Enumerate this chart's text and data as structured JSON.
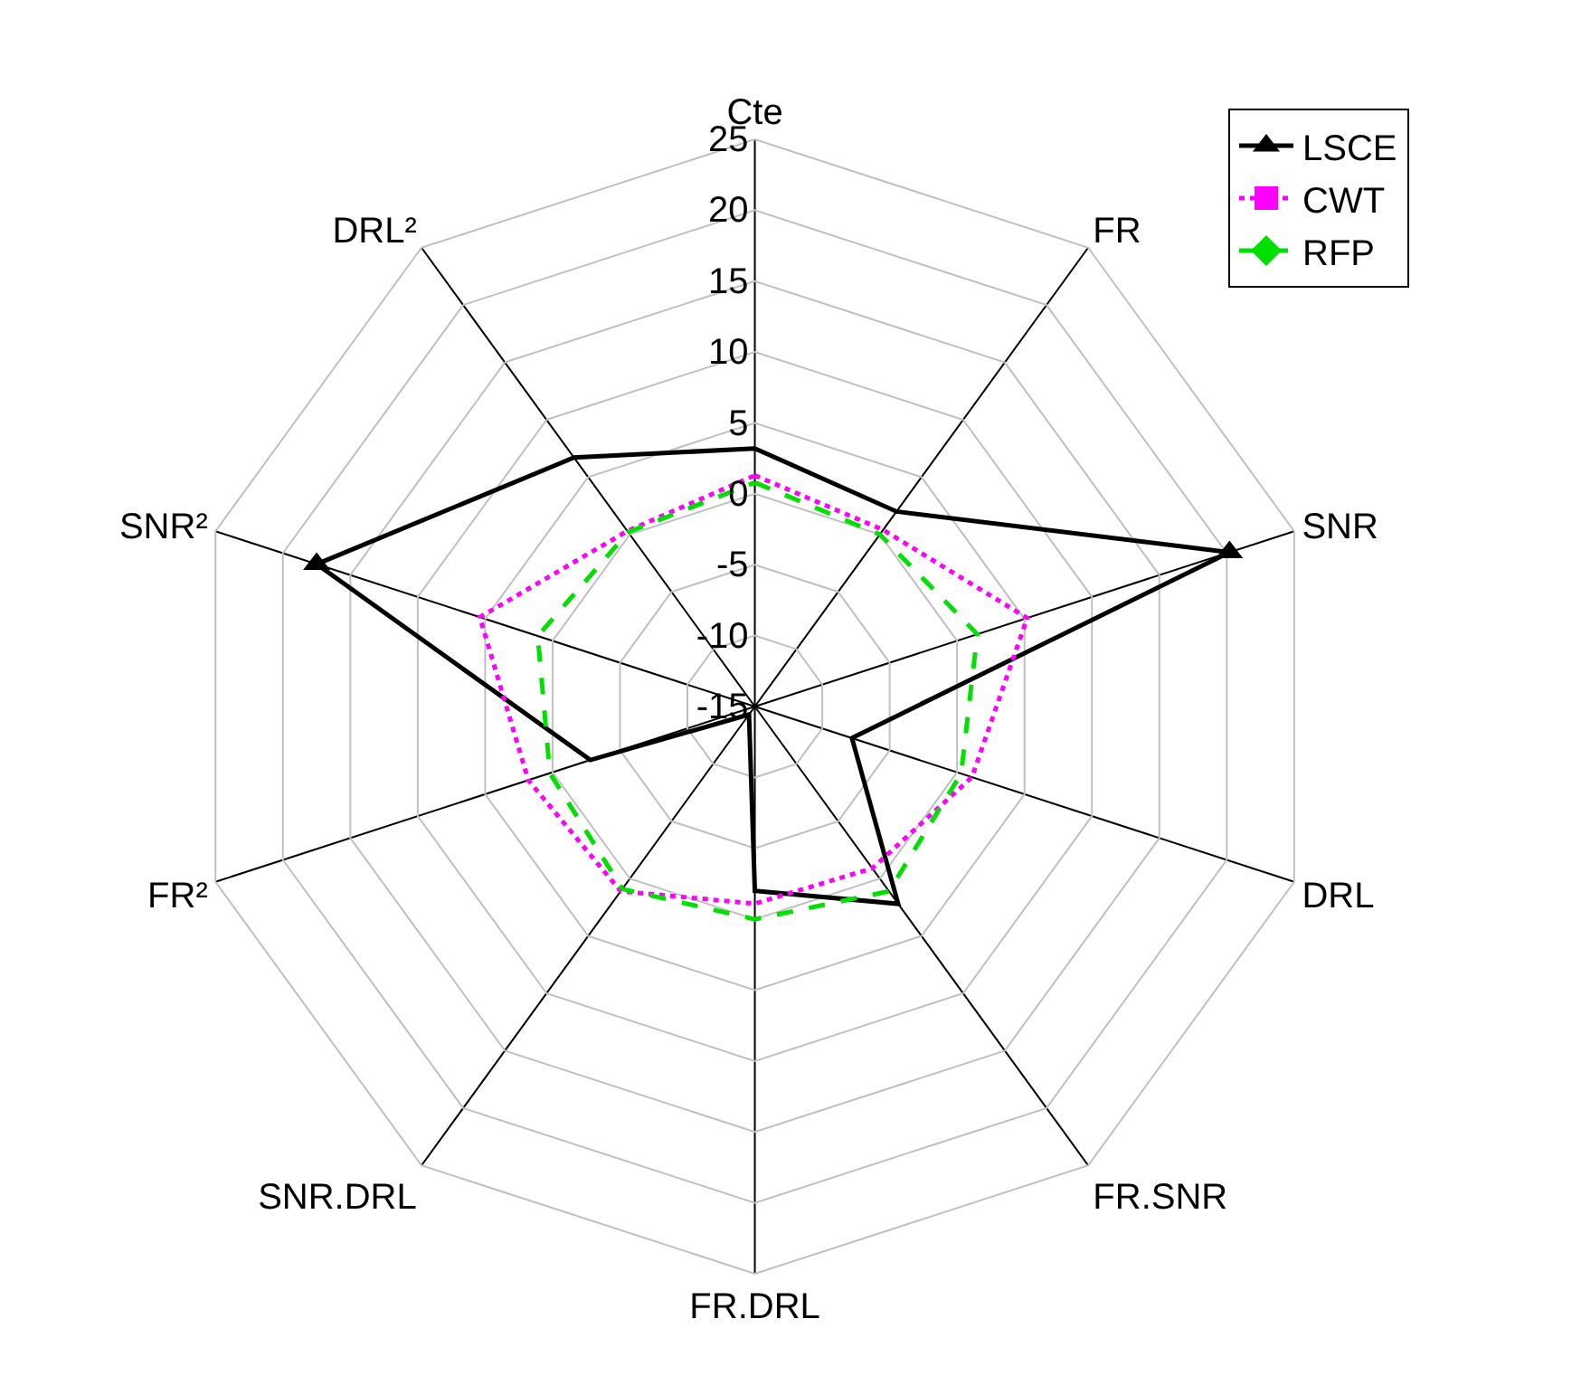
{
  "chart_data": {
    "type": "radar",
    "categories": [
      "Cte",
      "FR",
      "SNR",
      "DRL",
      "FR.SNR",
      "FR.DRL",
      "SNR.DRL",
      "FR²",
      "SNR²",
      "DRL²"
    ],
    "series": [
      {
        "name": "LSCE",
        "color": "#000000",
        "marker": "triangle",
        "line_style": "solid",
        "values": [
          3.2,
          2.0,
          20.2,
          -7.8,
          2.2,
          -2.0,
          -14.3,
          -2.8,
          17.5,
          6.7
        ]
      },
      {
        "name": "CWT",
        "color": "#ff00ff",
        "marker": "square",
        "line_style": "dotted",
        "values": [
          1.3,
          0.4,
          5.2,
          1.1,
          -0.9,
          -1.1,
          1.1,
          1.8,
          5.4,
          0.3
        ]
      },
      {
        "name": "RFP",
        "color": "#00e000",
        "marker": "diamond",
        "line_style": "dashed",
        "values": [
          0.8,
          0.0,
          1.5,
          0.3,
          1.1,
          0.0,
          0.9,
          0.2,
          1.1,
          0.2
        ]
      }
    ],
    "ylim": [
      -15,
      25
    ],
    "yticks": [
      -15,
      -10,
      -5,
      0,
      5,
      10,
      15,
      20,
      25
    ],
    "grid": true,
    "legend": "top right"
  }
}
